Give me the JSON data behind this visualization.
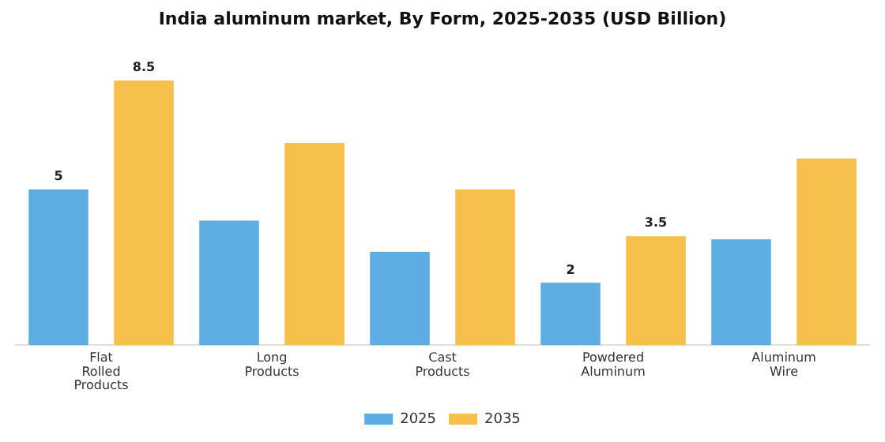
{
  "chart_data": {
    "type": "bar",
    "title": "India aluminum market, By Form, 2025-2035 (USD Billion)",
    "categories": [
      "Flat Rolled Products",
      "Long Products",
      "Cast Products",
      "Powdered Aluminum",
      "Aluminum Wire"
    ],
    "series": [
      {
        "name": "2025",
        "color": "#5dade2",
        "values": [
          5,
          4.0,
          3.0,
          2,
          3.4
        ],
        "value_labels": [
          "5",
          null,
          null,
          "2",
          null
        ]
      },
      {
        "name": "2035",
        "color": "#f7c04a",
        "values": [
          8.5,
          6.5,
          5.0,
          3.5,
          6.0
        ],
        "value_labels": [
          "8.5",
          null,
          null,
          "3.5",
          null
        ]
      }
    ],
    "grid": false,
    "legend": "bottom"
  }
}
